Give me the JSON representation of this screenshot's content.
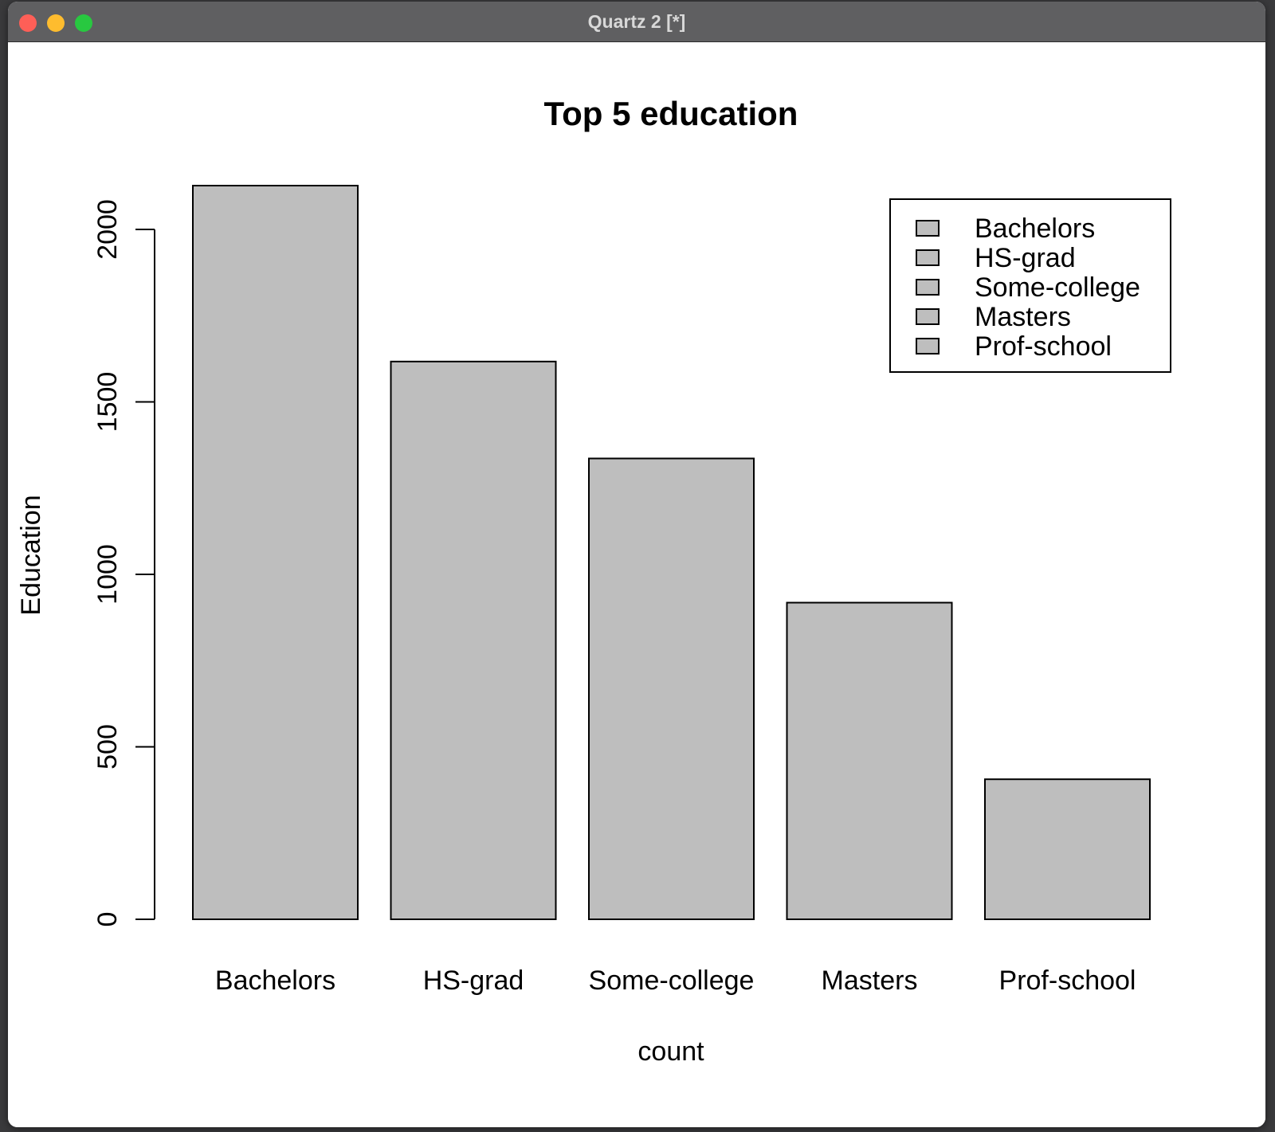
{
  "window": {
    "title": "Quartz 2 [*]"
  },
  "chart_data": {
    "type": "bar",
    "title": "Top 5 education",
    "xlabel": "count",
    "ylabel": "Education",
    "categories": [
      "Bachelors",
      "HS-grad",
      "Some-college",
      "Masters",
      "Prof-school"
    ],
    "values": [
      2127,
      1617,
      1336,
      918,
      406
    ],
    "ylim": [
      0,
      2000
    ],
    "yticks": [
      0,
      500,
      1000,
      1500,
      2000
    ],
    "bar_color": "#bebebe",
    "legend": {
      "position": "top-right",
      "entries": [
        "Bachelors",
        "HS-grad",
        "Some-college",
        "Masters",
        "Prof-school"
      ]
    },
    "grid": false
  }
}
